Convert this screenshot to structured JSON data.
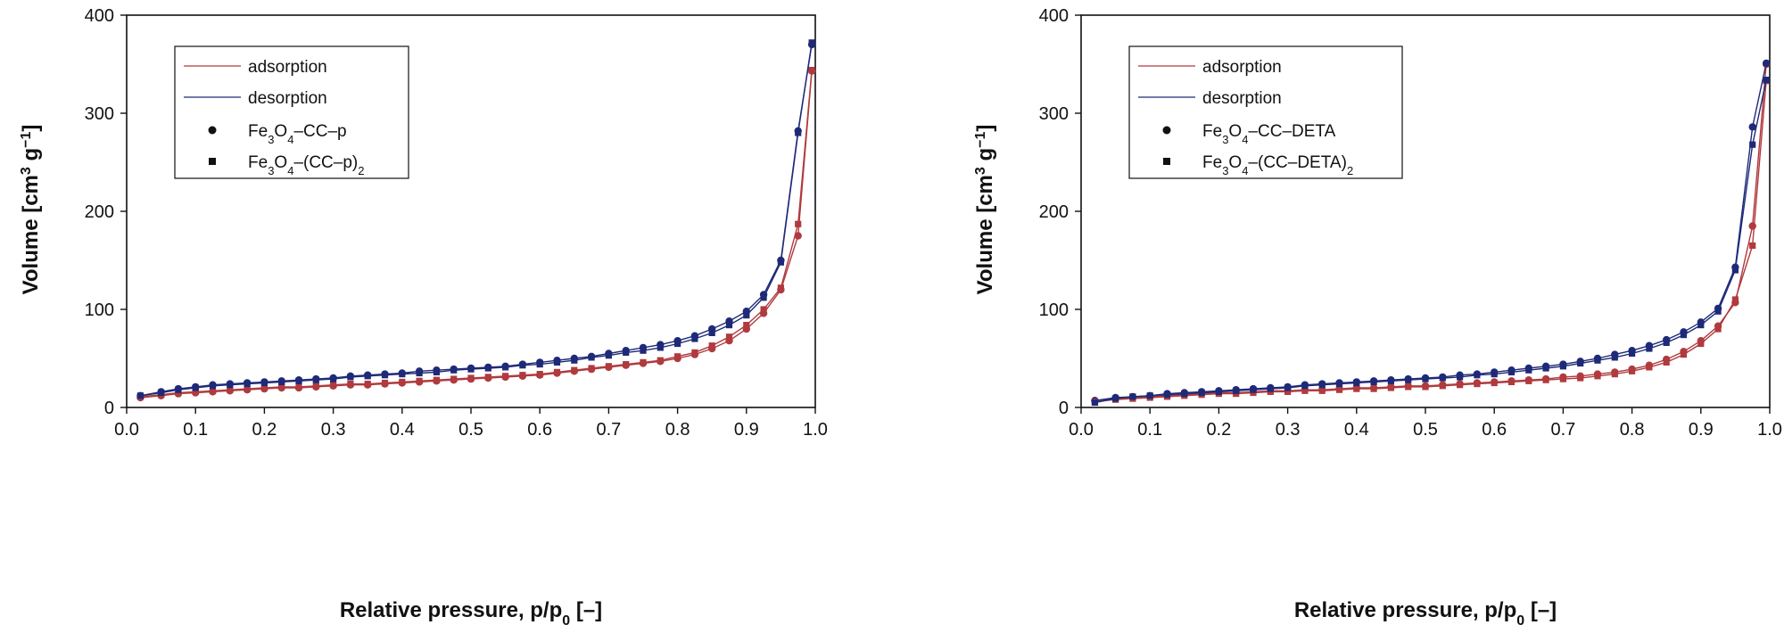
{
  "colors": {
    "adsorption": "#b03a3e",
    "desorption": "#1e2a78",
    "axis": "#111111"
  },
  "legend_labels": {
    "adsorption": "adsorption",
    "desorption": "desorption"
  },
  "chart_data": [
    {
      "type": "line",
      "xlabel": "Relative pressure, p/p0  [–]",
      "ylabel": "Volume [cm3 g−1]",
      "xlim": [
        0.0,
        1.0
      ],
      "ylim": [
        0,
        400
      ],
      "x_ticks": [
        "0.0",
        "0.1",
        "0.2",
        "0.3",
        "0.4",
        "0.5",
        "0.6",
        "0.7",
        "0.8",
        "0.9",
        "1.0"
      ],
      "y_ticks": [
        "0",
        "100",
        "200",
        "300",
        "400"
      ],
      "legend": [
        "adsorption",
        "desorption",
        "Fe3O4–CC–p",
        "Fe3O4–(CC–p)2"
      ],
      "series": [
        {
          "name": "Fe3O4–CC–p adsorption",
          "marker": "circle",
          "color": "adsorption",
          "x": [
            0.02,
            0.05,
            0.075,
            0.1,
            0.125,
            0.15,
            0.175,
            0.2,
            0.225,
            0.25,
            0.275,
            0.3,
            0.325,
            0.35,
            0.375,
            0.4,
            0.425,
            0.45,
            0.475,
            0.5,
            0.525,
            0.55,
            0.575,
            0.6,
            0.625,
            0.65,
            0.675,
            0.7,
            0.725,
            0.75,
            0.775,
            0.8,
            0.825,
            0.85,
            0.875,
            0.9,
            0.925,
            0.95,
            0.975,
            0.995
          ],
          "y": [
            10,
            12,
            14,
            15,
            16,
            17,
            18,
            19,
            20,
            20,
            21,
            22,
            23,
            23,
            24,
            25,
            26,
            27,
            28,
            29,
            30,
            31,
            32,
            33,
            35,
            37,
            39,
            41,
            43,
            45,
            47,
            50,
            54,
            60,
            68,
            80,
            96,
            120,
            175,
            343
          ]
        },
        {
          "name": "Fe3O4–CC–p desorption",
          "marker": "circle",
          "color": "desorption",
          "x": [
            0.995,
            0.975,
            0.95,
            0.925,
            0.9,
            0.875,
            0.85,
            0.825,
            0.8,
            0.775,
            0.75,
            0.725,
            0.7,
            0.675,
            0.65,
            0.625,
            0.6,
            0.575,
            0.55,
            0.525,
            0.5,
            0.475,
            0.45,
            0.425,
            0.4,
            0.375,
            0.35,
            0.325,
            0.3,
            0.275,
            0.25,
            0.225,
            0.2,
            0.175,
            0.15,
            0.125,
            0.1,
            0.075,
            0.05,
            0.02
          ],
          "y": [
            370,
            282,
            150,
            115,
            98,
            88,
            80,
            73,
            68,
            64,
            61,
            58,
            55,
            52,
            50,
            48,
            46,
            44,
            42,
            41,
            40,
            39,
            38,
            37,
            35,
            34,
            33,
            32,
            30,
            29,
            28,
            27,
            26,
            25,
            24,
            23,
            21,
            19,
            16,
            12
          ]
        },
        {
          "name": "Fe3O4–(CC–p)2 adsorption",
          "marker": "square",
          "color": "adsorption",
          "x": [
            0.02,
            0.05,
            0.075,
            0.1,
            0.125,
            0.15,
            0.175,
            0.2,
            0.225,
            0.25,
            0.275,
            0.3,
            0.325,
            0.35,
            0.375,
            0.4,
            0.425,
            0.45,
            0.475,
            0.5,
            0.525,
            0.55,
            0.575,
            0.6,
            0.625,
            0.65,
            0.675,
            0.7,
            0.725,
            0.75,
            0.775,
            0.8,
            0.825,
            0.85,
            0.875,
            0.9,
            0.925,
            0.95,
            0.975,
            0.995
          ],
          "y": [
            11,
            13,
            15,
            16,
            17,
            18,
            19,
            20,
            21,
            21,
            22,
            23,
            24,
            24,
            25,
            26,
            27,
            28,
            29,
            30,
            31,
            32,
            33,
            34,
            36,
            38,
            40,
            42,
            44,
            46,
            48,
            52,
            56,
            63,
            72,
            84,
            100,
            122,
            187,
            344
          ]
        },
        {
          "name": "Fe3O4–(CC–p)2 desorption",
          "marker": "square",
          "color": "desorption",
          "x": [
            0.995,
            0.975,
            0.95,
            0.925,
            0.9,
            0.875,
            0.85,
            0.825,
            0.8,
            0.775,
            0.75,
            0.725,
            0.7,
            0.675,
            0.65,
            0.625,
            0.6,
            0.575,
            0.55,
            0.525,
            0.5,
            0.475,
            0.45,
            0.425,
            0.4,
            0.375,
            0.35,
            0.325,
            0.3,
            0.275,
            0.25,
            0.225,
            0.2,
            0.175,
            0.15,
            0.125,
            0.1,
            0.075,
            0.05,
            0.02
          ],
          "y": [
            372,
            280,
            148,
            112,
            94,
            84,
            76,
            70,
            65,
            61,
            58,
            56,
            53,
            51,
            48,
            46,
            44,
            43,
            41,
            40,
            39,
            38,
            36,
            35,
            34,
            33,
            32,
            31,
            29,
            28,
            27,
            26,
            25,
            24,
            23,
            22,
            20,
            18,
            15,
            12
          ]
        }
      ]
    },
    {
      "type": "line",
      "xlabel": "Relative pressure, p/p0  [–]",
      "ylabel": "Volume [cm3 g−1]",
      "xlim": [
        0.0,
        1.0
      ],
      "ylim": [
        0,
        400
      ],
      "x_ticks": [
        "0.0",
        "0.1",
        "0.2",
        "0.3",
        "0.4",
        "0.5",
        "0.6",
        "0.7",
        "0.8",
        "0.9",
        "1.0"
      ],
      "y_ticks": [
        "0",
        "100",
        "200",
        "300",
        "400"
      ],
      "legend": [
        "adsorption",
        "desorption",
        "Fe3O4–CC–DETA",
        "Fe3O4–(CC–DETA)2"
      ],
      "series": [
        {
          "name": "Fe3O4–CC–DETA adsorption",
          "marker": "circle",
          "color": "adsorption",
          "x": [
            0.02,
            0.05,
            0.075,
            0.1,
            0.125,
            0.15,
            0.175,
            0.2,
            0.225,
            0.25,
            0.275,
            0.3,
            0.325,
            0.35,
            0.375,
            0.4,
            0.425,
            0.45,
            0.475,
            0.5,
            0.525,
            0.55,
            0.575,
            0.6,
            0.625,
            0.65,
            0.675,
            0.7,
            0.725,
            0.75,
            0.775,
            0.8,
            0.825,
            0.85,
            0.875,
            0.9,
            0.925,
            0.95,
            0.975,
            0.995
          ],
          "y": [
            7,
            9,
            10,
            11,
            12,
            13,
            14,
            15,
            15,
            16,
            17,
            17,
            18,
            18,
            19,
            20,
            20,
            21,
            22,
            22,
            23,
            24,
            25,
            26,
            27,
            28,
            29,
            31,
            32,
            34,
            36,
            39,
            43,
            49,
            57,
            68,
            83,
            107,
            185,
            350
          ]
        },
        {
          "name": "Fe3O4–CC–DETA desorption",
          "marker": "circle",
          "color": "desorption",
          "x": [
            0.995,
            0.975,
            0.95,
            0.925,
            0.9,
            0.875,
            0.85,
            0.825,
            0.8,
            0.775,
            0.75,
            0.725,
            0.7,
            0.675,
            0.65,
            0.625,
            0.6,
            0.575,
            0.55,
            0.525,
            0.5,
            0.475,
            0.45,
            0.425,
            0.4,
            0.375,
            0.35,
            0.325,
            0.3,
            0.275,
            0.25,
            0.225,
            0.2,
            0.175,
            0.15,
            0.125,
            0.1,
            0.075,
            0.05,
            0.02
          ],
          "y": [
            351,
            286,
            143,
            101,
            87,
            77,
            69,
            63,
            58,
            54,
            50,
            47,
            44,
            42,
            40,
            38,
            36,
            34,
            33,
            31,
            30,
            29,
            28,
            27,
            26,
            25,
            24,
            23,
            21,
            20,
            19,
            18,
            17,
            16,
            15,
            14,
            12,
            11,
            10,
            7
          ]
        },
        {
          "name": "Fe3O4–(CC–DETA)2 adsorption",
          "marker": "square",
          "color": "adsorption",
          "x": [
            0.02,
            0.05,
            0.075,
            0.1,
            0.125,
            0.15,
            0.175,
            0.2,
            0.225,
            0.25,
            0.275,
            0.3,
            0.325,
            0.35,
            0.375,
            0.4,
            0.425,
            0.45,
            0.475,
            0.5,
            0.525,
            0.55,
            0.575,
            0.6,
            0.625,
            0.65,
            0.675,
            0.7,
            0.725,
            0.75,
            0.775,
            0.8,
            0.825,
            0.85,
            0.875,
            0.9,
            0.925,
            0.95,
            0.975,
            0.995
          ],
          "y": [
            6,
            8,
            9,
            10,
            11,
            12,
            13,
            14,
            14,
            15,
            16,
            16,
            17,
            17,
            18,
            19,
            19,
            20,
            21,
            21,
            22,
            23,
            24,
            25,
            26,
            27,
            28,
            29,
            30,
            32,
            34,
            37,
            41,
            46,
            54,
            65,
            80,
            110,
            165,
            333
          ]
        },
        {
          "name": "Fe3O4–(CC–DETA)2 desorption",
          "marker": "square",
          "color": "desorption",
          "x": [
            0.995,
            0.975,
            0.95,
            0.925,
            0.9,
            0.875,
            0.85,
            0.825,
            0.8,
            0.775,
            0.75,
            0.725,
            0.7,
            0.675,
            0.65,
            0.625,
            0.6,
            0.575,
            0.55,
            0.525,
            0.5,
            0.475,
            0.45,
            0.425,
            0.4,
            0.375,
            0.35,
            0.325,
            0.3,
            0.275,
            0.25,
            0.225,
            0.2,
            0.175,
            0.15,
            0.125,
            0.1,
            0.075,
            0.05,
            0.02
          ],
          "y": [
            334,
            268,
            140,
            98,
            84,
            74,
            66,
            60,
            55,
            51,
            48,
            45,
            42,
            40,
            38,
            36,
            34,
            33,
            31,
            30,
            29,
            28,
            27,
            26,
            25,
            24,
            23,
            22,
            20,
            19,
            18,
            17,
            16,
            15,
            14,
            13,
            12,
            11,
            9,
            5
          ]
        }
      ]
    }
  ]
}
